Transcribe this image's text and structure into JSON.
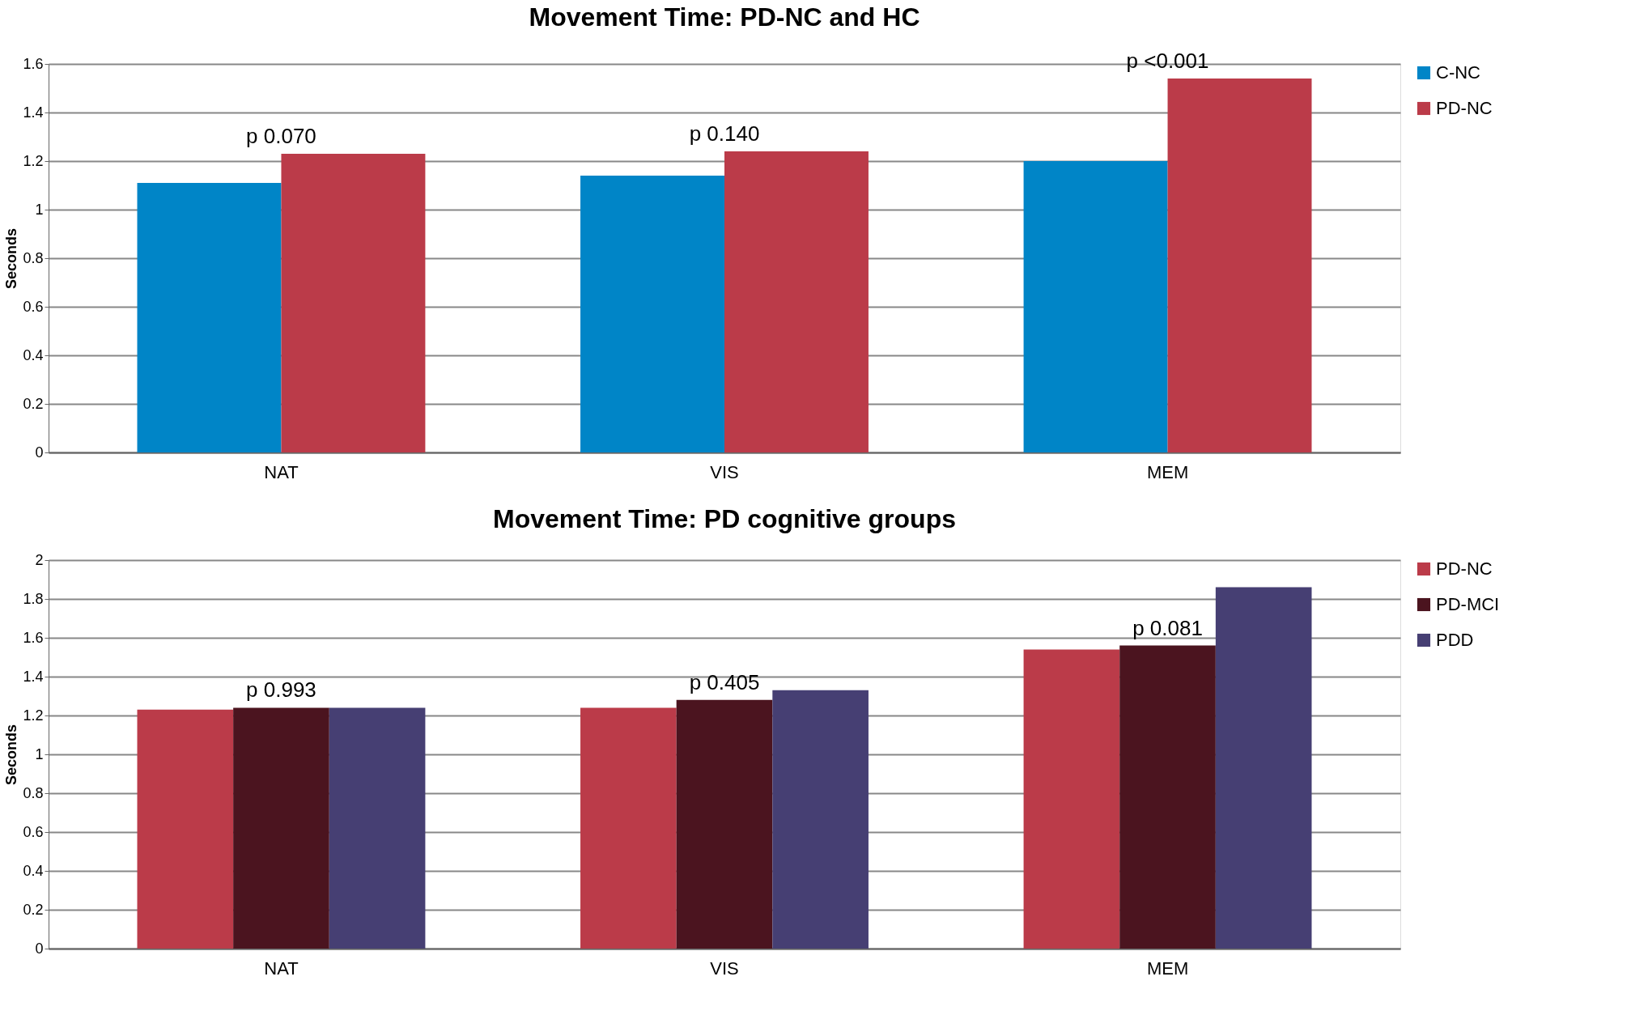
{
  "chart_data": [
    {
      "type": "bar",
      "title": "Movement Time: PD-NC and HC",
      "ylabel": "Seconds",
      "categories": [
        "NAT",
        "VIS",
        "MEM"
      ],
      "series": [
        {
          "name": "C-NC",
          "color": "#0085c7",
          "values": [
            1.11,
            1.14,
            1.2
          ]
        },
        {
          "name": "PD-NC",
          "color": "#bb3b49",
          "values": [
            1.23,
            1.24,
            1.54
          ]
        }
      ],
      "ylim": [
        0,
        1.6
      ],
      "yticks": [
        0,
        0.2,
        0.4,
        0.6,
        0.8,
        1,
        1.2,
        1.4,
        1.6
      ],
      "grid": "y",
      "legend": "right",
      "annotations": [
        "p 0.070",
        "p 0.140",
        "p <0.001"
      ]
    },
    {
      "type": "bar",
      "title": "Movement Time: PD cognitive groups",
      "ylabel": "Seconds",
      "categories": [
        "NAT",
        "VIS",
        "MEM"
      ],
      "series": [
        {
          "name": "PD-NC",
          "color": "#bb3b49",
          "values": [
            1.23,
            1.24,
            1.54
          ]
        },
        {
          "name": "PD-MCI",
          "color": "#4b141f",
          "values": [
            1.24,
            1.28,
            1.56
          ]
        },
        {
          "name": "PDD",
          "color": "#463f73",
          "values": [
            1.24,
            1.33,
            1.86
          ]
        }
      ],
      "ylim": [
        0,
        2
      ],
      "yticks": [
        0,
        0.2,
        0.4,
        0.6,
        0.8,
        1,
        1.2,
        1.4,
        1.6,
        1.8,
        2
      ],
      "grid": "y",
      "legend": "right",
      "annotations": [
        "p 0.993",
        "p 0.405",
        "p 0.081"
      ]
    }
  ]
}
